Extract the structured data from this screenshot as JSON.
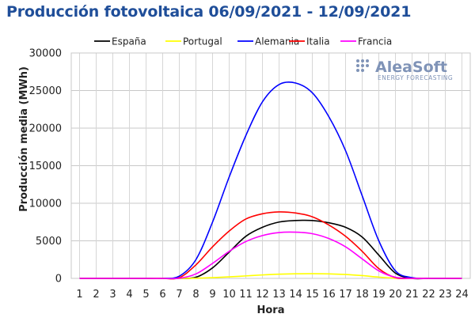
{
  "chart_data": {
    "type": "line",
    "title": "Producción fotovoltaica 06/09/2021 - 12/09/2021",
    "xlabel": "Hora",
    "ylabel": "Producción media (MWh)",
    "x": [
      1,
      2,
      3,
      4,
      5,
      6,
      7,
      8,
      9,
      10,
      11,
      12,
      13,
      14,
      15,
      16,
      17,
      18,
      19,
      20,
      21,
      22,
      23,
      24
    ],
    "xlim": [
      0.5,
      24.5
    ],
    "ylim": [
      0,
      30000
    ],
    "yticks": [
      0,
      5000,
      10000,
      15000,
      20000,
      25000,
      30000
    ],
    "yticklabels": [
      "0",
      "5000",
      "10000",
      "15000",
      "20000",
      "25000",
      "30000"
    ],
    "grid": true,
    "legend_position": "top",
    "series": [
      {
        "name": "España",
        "color": "#000000",
        "values": [
          0,
          0,
          0,
          0,
          0,
          0,
          0,
          150,
          1400,
          3500,
          5600,
          6800,
          7500,
          7700,
          7700,
          7400,
          6800,
          5500,
          3100,
          700,
          0,
          0,
          0,
          0
        ]
      },
      {
        "name": "Portugal",
        "color": "#ffff00",
        "values": [
          0,
          0,
          0,
          0,
          0,
          0,
          0,
          20,
          100,
          200,
          330,
          460,
          560,
          610,
          620,
          600,
          520,
          370,
          170,
          30,
          0,
          0,
          0,
          0
        ]
      },
      {
        "name": "Alemania",
        "color": "#0000ff",
        "values": [
          0,
          0,
          0,
          0,
          0,
          0,
          300,
          2500,
          7500,
          13500,
          19000,
          23500,
          25800,
          26000,
          24700,
          21500,
          17000,
          11000,
          5000,
          1000,
          100,
          0,
          0,
          0
        ]
      },
      {
        "name": "Italia",
        "color": "#ff0000",
        "values": [
          0,
          0,
          0,
          0,
          0,
          0,
          100,
          1800,
          4200,
          6300,
          7900,
          8600,
          8850,
          8700,
          8200,
          7100,
          5600,
          3600,
          1300,
          100,
          0,
          0,
          0,
          0
        ]
      },
      {
        "name": "Francia",
        "color": "#ff00ff",
        "values": [
          0,
          0,
          0,
          0,
          0,
          0,
          20,
          600,
          2000,
          3600,
          4900,
          5700,
          6100,
          6150,
          5950,
          5300,
          4200,
          2600,
          1000,
          150,
          0,
          0,
          0,
          0
        ]
      }
    ]
  },
  "watermark": {
    "brand": "AleaSoft",
    "tagline": "ENERGY FORECASTING"
  }
}
